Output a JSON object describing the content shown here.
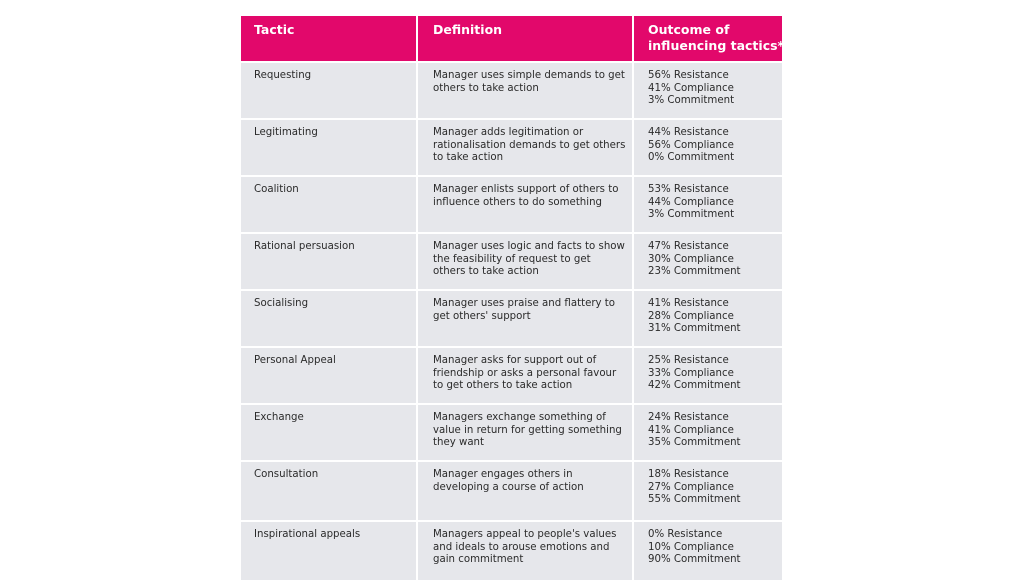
{
  "table": {
    "headers": {
      "tactic": "Tactic",
      "definition": "Definition",
      "outcome_line1": "Outcome of",
      "outcome_line2": "influencing tactics*"
    },
    "rows": [
      {
        "tactic": "Requesting",
        "definition": "Manager uses simple demands to get others to take action",
        "outcomes": [
          "56% Resistance",
          "41% Compliance",
          "3% Commitment"
        ]
      },
      {
        "tactic": "Legitimating",
        "definition": "Manager adds legitimation or rationalisation demands to get others to take action",
        "outcomes": [
          "44% Resistance",
          "56% Compliance",
          "0% Commitment"
        ]
      },
      {
        "tactic": "Coalition",
        "definition": "Manager enlists support of others to influence others to do something",
        "outcomes": [
          "53% Resistance",
          "44% Compliance",
          "3% Commitment"
        ]
      },
      {
        "tactic": "Rational persuasion",
        "definition": "Manager uses logic and facts to show the feasibility of request to get others to take action",
        "outcomes": [
          "47% Resistance",
          "30% Compliance",
          "23% Commitment"
        ]
      },
      {
        "tactic": "Socialising",
        "definition": "Manager uses praise and flattery to get others' support",
        "outcomes": [
          "41% Resistance",
          "28% Compliance",
          "31% Commitment"
        ]
      },
      {
        "tactic": "Personal Appeal",
        "definition": "Manager asks for support out of friendship or asks a personal favour to get others to take action",
        "outcomes": [
          "25% Resistance",
          "33% Compliance",
          "42% Commitment"
        ]
      },
      {
        "tactic": "Exchange",
        "definition": "Managers exchange something of value in return for getting something they want",
        "outcomes": [
          "24% Resistance",
          "41% Compliance",
          "35% Commitment"
        ]
      },
      {
        "tactic": "Consultation",
        "definition": "Manager engages others in developing a course of action",
        "outcomes": [
          "18% Resistance",
          "27% Compliance",
          "55% Commitment"
        ]
      },
      {
        "tactic": "Inspirational appeals",
        "definition": "Managers appeal to people's values and ideals to arouse emotions and gain commitment",
        "outcomes": [
          "0% Resistance",
          "10% Compliance",
          "90% Commitment"
        ]
      }
    ]
  },
  "colors": {
    "header_bg": "#e2086b",
    "row_bg": "#e6e7eb",
    "text": "#2b2b2b"
  }
}
